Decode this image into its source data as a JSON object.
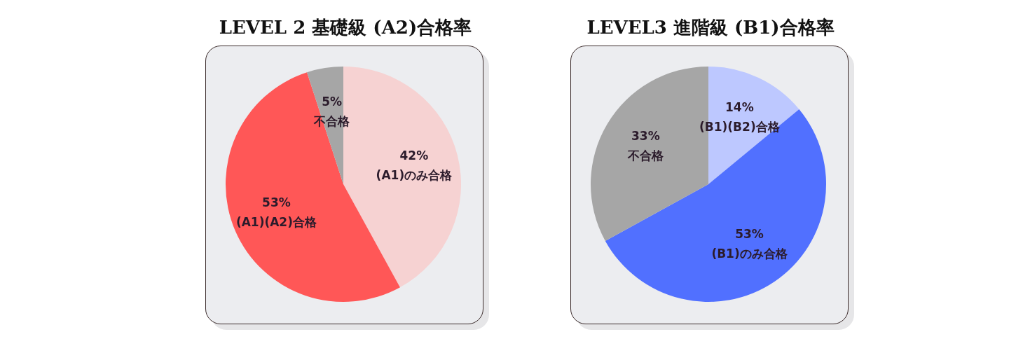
{
  "chart_data": [
    {
      "type": "pie",
      "title": "LEVEL 2 基礎級 (A2)合格率",
      "categories": [
        "(A1)のみ合格",
        "(A1)(A2)合格",
        "不合格"
      ],
      "values": [
        42,
        53,
        5
      ],
      "colors": [
        "#f6d2d2",
        "#ff5757",
        "#a6a6a6"
      ],
      "value_labels": [
        "42%",
        "53%",
        "5%"
      ],
      "legend": false
    },
    {
      "type": "pie",
      "title": "LEVEL3 進階級 (B1)合格率",
      "categories": [
        "(B1)(B2)合格",
        "(B1)のみ合格",
        "不合格"
      ],
      "values": [
        14,
        53,
        33
      ],
      "colors": [
        "#bdc8ff",
        "#5170ff",
        "#a6a6a6"
      ],
      "value_labels": [
        "14%",
        "53%",
        "33%"
      ],
      "legend": false
    }
  ]
}
